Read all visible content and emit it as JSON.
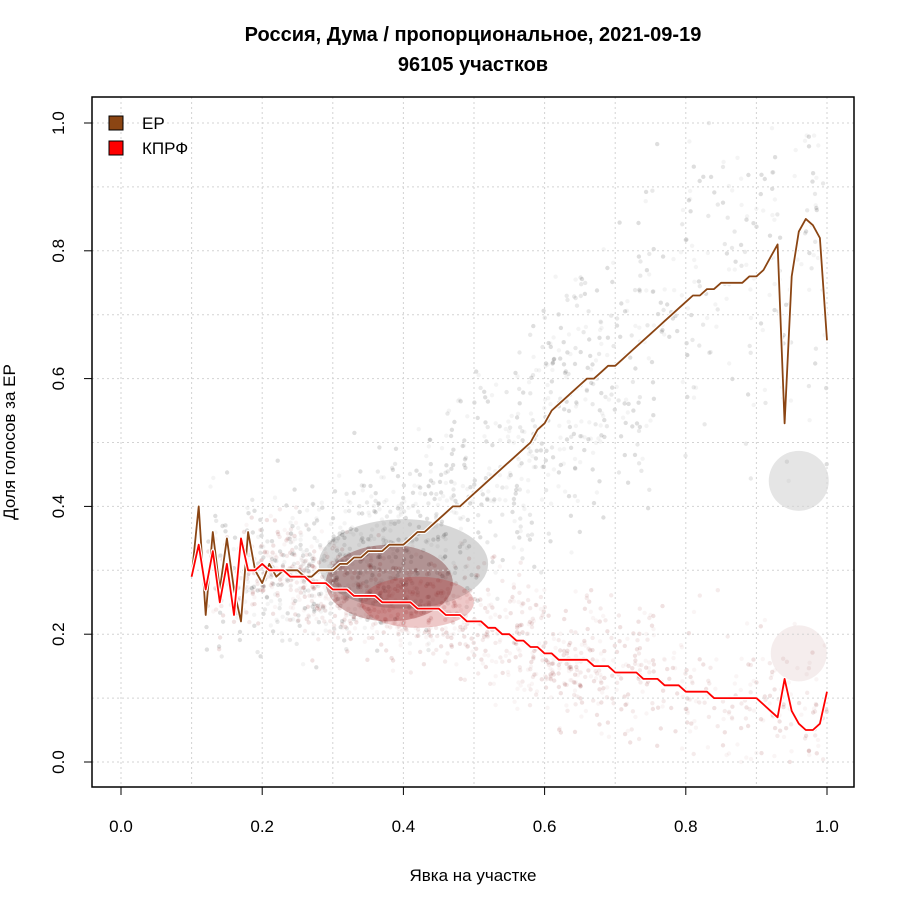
{
  "chart_data": {
    "type": "scatter",
    "title": "Россия, Дума / пропорциональное, 2021-09-19",
    "subtitle": "96105 участков",
    "xlabel": "Явка на участке",
    "ylabel": "Доля голосов за ЕР",
    "xlim": [
      0,
      1
    ],
    "ylim": [
      0,
      1
    ],
    "x_ticks": [
      "0.0",
      "0.2",
      "0.4",
      "0.6",
      "0.8",
      "1.0"
    ],
    "y_ticks": [
      "0.0",
      "0.2",
      "0.4",
      "0.6",
      "0.8",
      "1.0"
    ],
    "grid": true,
    "legend_position": "top-left",
    "series": [
      {
        "name": "ЕР",
        "color": "#8B4513",
        "x": [
          0.1,
          0.11,
          0.12,
          0.13,
          0.14,
          0.15,
          0.16,
          0.17,
          0.18,
          0.19,
          0.2,
          0.21,
          0.22,
          0.23,
          0.24,
          0.25,
          0.26,
          0.27,
          0.28,
          0.29,
          0.3,
          0.31,
          0.32,
          0.33,
          0.34,
          0.35,
          0.36,
          0.37,
          0.38,
          0.39,
          0.4,
          0.41,
          0.42,
          0.43,
          0.44,
          0.45,
          0.46,
          0.47,
          0.48,
          0.49,
          0.5,
          0.51,
          0.52,
          0.53,
          0.54,
          0.55,
          0.56,
          0.57,
          0.58,
          0.59,
          0.6,
          0.61,
          0.62,
          0.63,
          0.64,
          0.65,
          0.66,
          0.67,
          0.68,
          0.69,
          0.7,
          0.71,
          0.72,
          0.73,
          0.74,
          0.75,
          0.76,
          0.77,
          0.78,
          0.79,
          0.8,
          0.81,
          0.82,
          0.83,
          0.84,
          0.85,
          0.86,
          0.87,
          0.88,
          0.89,
          0.9,
          0.91,
          0.92,
          0.93,
          0.94,
          0.95,
          0.96,
          0.97,
          0.98,
          0.99,
          1.0
        ],
        "values": [
          0.29,
          0.4,
          0.23,
          0.36,
          0.27,
          0.35,
          0.27,
          0.22,
          0.36,
          0.3,
          0.28,
          0.31,
          0.29,
          0.3,
          0.3,
          0.3,
          0.29,
          0.29,
          0.3,
          0.3,
          0.3,
          0.31,
          0.31,
          0.32,
          0.32,
          0.33,
          0.33,
          0.33,
          0.34,
          0.34,
          0.34,
          0.35,
          0.36,
          0.36,
          0.37,
          0.38,
          0.39,
          0.4,
          0.4,
          0.41,
          0.42,
          0.43,
          0.44,
          0.45,
          0.46,
          0.47,
          0.48,
          0.49,
          0.5,
          0.52,
          0.53,
          0.55,
          0.56,
          0.57,
          0.58,
          0.59,
          0.6,
          0.6,
          0.61,
          0.62,
          0.62,
          0.63,
          0.64,
          0.65,
          0.66,
          0.67,
          0.68,
          0.69,
          0.7,
          0.71,
          0.72,
          0.73,
          0.73,
          0.74,
          0.74,
          0.75,
          0.75,
          0.75,
          0.75,
          0.76,
          0.76,
          0.77,
          0.79,
          0.81,
          0.53,
          0.76,
          0.83,
          0.85,
          0.84,
          0.82,
          0.66
        ]
      },
      {
        "name": "КПРФ",
        "color": "#FF0000",
        "x": [
          0.1,
          0.11,
          0.12,
          0.13,
          0.14,
          0.15,
          0.16,
          0.17,
          0.18,
          0.19,
          0.2,
          0.21,
          0.22,
          0.23,
          0.24,
          0.25,
          0.26,
          0.27,
          0.28,
          0.29,
          0.3,
          0.31,
          0.32,
          0.33,
          0.34,
          0.35,
          0.36,
          0.37,
          0.38,
          0.39,
          0.4,
          0.41,
          0.42,
          0.43,
          0.44,
          0.45,
          0.46,
          0.47,
          0.48,
          0.49,
          0.5,
          0.51,
          0.52,
          0.53,
          0.54,
          0.55,
          0.56,
          0.57,
          0.58,
          0.59,
          0.6,
          0.61,
          0.62,
          0.63,
          0.64,
          0.65,
          0.66,
          0.67,
          0.68,
          0.69,
          0.7,
          0.71,
          0.72,
          0.73,
          0.74,
          0.75,
          0.76,
          0.77,
          0.78,
          0.79,
          0.8,
          0.81,
          0.82,
          0.83,
          0.84,
          0.85,
          0.86,
          0.87,
          0.88,
          0.89,
          0.9,
          0.91,
          0.92,
          0.93,
          0.94,
          0.95,
          0.96,
          0.97,
          0.98,
          0.99,
          1.0
        ],
        "values": [
          0.29,
          0.34,
          0.27,
          0.33,
          0.25,
          0.31,
          0.23,
          0.35,
          0.3,
          0.3,
          0.31,
          0.3,
          0.3,
          0.3,
          0.29,
          0.29,
          0.29,
          0.28,
          0.28,
          0.28,
          0.27,
          0.27,
          0.27,
          0.26,
          0.26,
          0.26,
          0.26,
          0.25,
          0.25,
          0.25,
          0.25,
          0.25,
          0.24,
          0.24,
          0.24,
          0.24,
          0.23,
          0.23,
          0.23,
          0.22,
          0.22,
          0.22,
          0.21,
          0.21,
          0.2,
          0.2,
          0.19,
          0.19,
          0.18,
          0.18,
          0.17,
          0.17,
          0.16,
          0.16,
          0.16,
          0.16,
          0.16,
          0.15,
          0.15,
          0.15,
          0.14,
          0.14,
          0.14,
          0.14,
          0.13,
          0.13,
          0.13,
          0.12,
          0.12,
          0.12,
          0.11,
          0.11,
          0.11,
          0.11,
          0.1,
          0.1,
          0.1,
          0.1,
          0.1,
          0.1,
          0.1,
          0.09,
          0.08,
          0.07,
          0.13,
          0.08,
          0.06,
          0.05,
          0.05,
          0.06,
          0.11
        ]
      }
    ],
    "density_note_color_er": "#000000",
    "density_note_color_kprf": "#8B0000"
  }
}
